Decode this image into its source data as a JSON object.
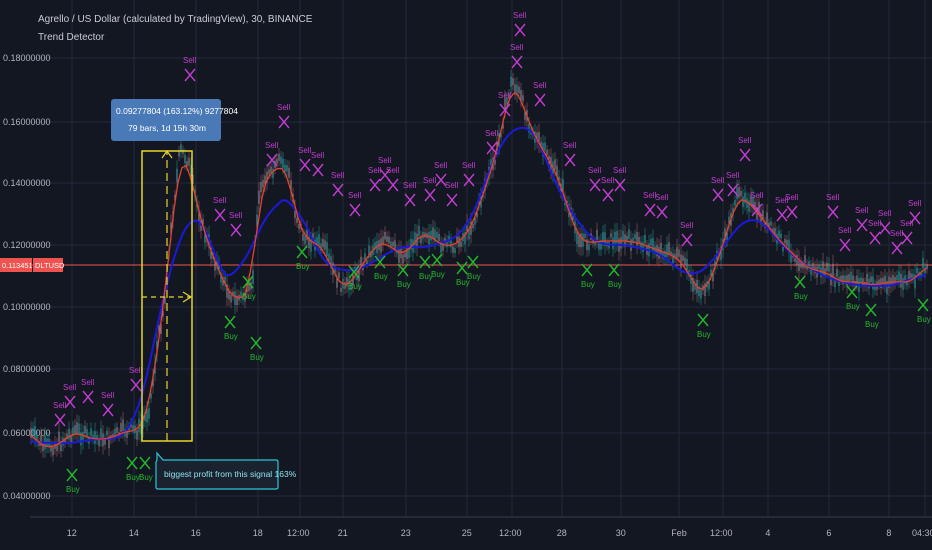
{
  "header": {
    "symbol_title": "Agrello / US Dollar (calculated by TradingView), 30, BINANCE",
    "indicator_name": "Trend Detector"
  },
  "price_axis": {
    "labels": [
      "0.18000000",
      "0.16000000",
      "0.14000000",
      "0.12000000",
      "0.10000000",
      "0.08000000",
      "0.06000000",
      "0.04000000"
    ],
    "current_price_label": "0.11345144",
    "current_symbol_tag": "DLTUSD"
  },
  "time_axis": {
    "labels": [
      "12",
      "14",
      "16",
      "18",
      "12:00",
      "21",
      "23",
      "25",
      "12:00",
      "28",
      "30",
      "Feb",
      "12:00",
      "4",
      "6",
      "8",
      "04:30"
    ]
  },
  "measure_tooltip": {
    "line1": "0.09277804 (163.12%) 9277804",
    "line2": "79 bars, 1d 15h 30m"
  },
  "annotation": {
    "text": "biggest profit from this signal 163%"
  },
  "signals": {
    "buy_label": "Buy",
    "sell_label": "Sell"
  },
  "colors": {
    "background": "#131722",
    "buy": "#23b82c",
    "sell": "#c23ccf",
    "trend_line": "#1a1ad8",
    "ma_line": "#e8402f",
    "price_line": "#ef5350",
    "measure_box": "#e7d52a",
    "tooltip_bg": "#4a79b8",
    "annotation_border": "#2bc6d8"
  }
}
